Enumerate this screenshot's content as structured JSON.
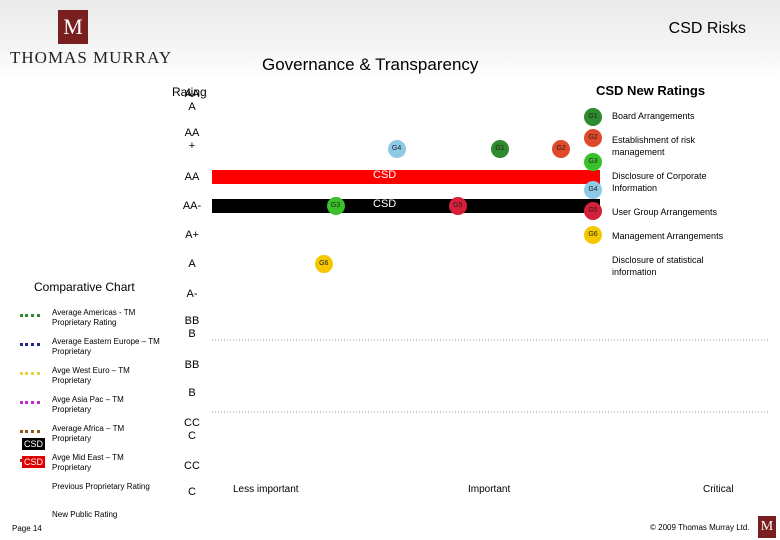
{
  "header": {
    "logo_letter": "M",
    "brand": "THOMAS MURRAY",
    "doc_title": "CSD Risks",
    "section_title": "Governance & Transparency"
  },
  "chart_data": {
    "type": "scatter",
    "y_axis_title": "Rating",
    "y_categories": [
      "AA A",
      "AA +",
      "AA",
      "AA-",
      "A+",
      "A",
      "A-",
      "BB B",
      "BB",
      "B",
      "CC C",
      "CC",
      "C"
    ],
    "x_categories": [
      "Less important",
      "Important",
      "Critical"
    ],
    "bars": [
      {
        "label": "CSD",
        "rating": "AA",
        "color": "#ff0000"
      },
      {
        "label": "CSD",
        "rating": "AA-",
        "color": "#000000"
      }
    ],
    "points": [
      {
        "id": "G4",
        "x": 1.56,
        "y": "AA +",
        "color": "#8ecae6"
      },
      {
        "id": "G1",
        "x": 2.0,
        "y": "AA +",
        "color": "#2e8b2e"
      },
      {
        "id": "G2",
        "x": 2.26,
        "y": "AA +",
        "color": "#e04a2a"
      },
      {
        "id": "G3",
        "x": 1.3,
        "y": "AA-",
        "color": "#39c12a"
      },
      {
        "id": "G5",
        "x": 1.82,
        "y": "AA-",
        "color": "#d81f3a"
      },
      {
        "id": "G6",
        "x": 1.25,
        "y": "A",
        "color": "#f5c800"
      }
    ]
  },
  "legend": {
    "title": "CSD New Ratings",
    "items": [
      {
        "id": "G1",
        "label": "Board Arrangements",
        "color": "#2e8b2e"
      },
      {
        "id": "G2",
        "label": "Establishment of risk management",
        "color": "#e04a2a"
      },
      {
        "id": "G3",
        "label": "",
        "color": "#39c12a"
      },
      {
        "id": "G4",
        "label": "Disclosure of Corporate Information",
        "color": "#8ecae6"
      },
      {
        "id": "G5",
        "label": "User Group Arrangements",
        "color": "#d81f3a"
      },
      {
        "id": "G6",
        "label": "Management Arrangements",
        "color": "#f5c800"
      },
      {
        "id": "",
        "label": "Disclosure of statistical information",
        "color": ""
      }
    ]
  },
  "comparative": {
    "title": "Comparative Chart",
    "items": [
      {
        "label": "Average Americas - TM Proprietary Rating",
        "color": "#2e8b2e"
      },
      {
        "label": "Average Eastern Europe – TM Proprietary",
        "color": "#1f2a8a"
      },
      {
        "label": "Avge West Euro – TM Proprietary",
        "color": "#e8d13a"
      },
      {
        "label": "Avge Asia Pac – TM Proprietary",
        "color": "#c02ad0"
      },
      {
        "label": "Average Africa – TM Proprietary",
        "color": "#8a5a1a"
      },
      {
        "label": "Avge Mid East – TM Proprietary",
        "color": "#c02020"
      },
      {
        "label": "Previous Proprietary Rating",
        "color": ""
      },
      {
        "label": "New Public Rating",
        "color": ""
      }
    ],
    "csd_tag_1": "CSD",
    "csd_tag_2": "CSD"
  },
  "footer": {
    "page": "Page 14",
    "copyright": "© 2009 Thomas Murray Ltd."
  }
}
